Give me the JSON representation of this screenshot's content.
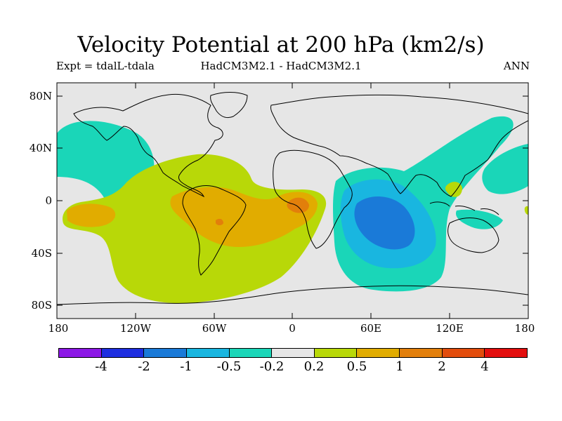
{
  "title": "Velocity Potential at 200 hPa (km2/s)",
  "expt_label": "Expt = tdalL-tdala",
  "model_label": "HadCM3M2.1 - HadCM3M2.1",
  "season_label": "ANN",
  "lat_ticks": [
    "80N",
    "40N",
    "0",
    "40S",
    "80S"
  ],
  "lon_ticks": [
    "180",
    "120W",
    "60W",
    "0",
    "60E",
    "120E",
    "180"
  ],
  "colorbar": {
    "colors": [
      "#8c17e6",
      "#1e2ee0",
      "#1a7ad8",
      "#19b6e0",
      "#1ad6b8",
      "#e6e6e6",
      "#b8d808",
      "#e1ac00",
      "#e27f0b",
      "#e24c0c",
      "#e30e0e"
    ],
    "labels": [
      "-4",
      "-2",
      "-1",
      "-0.5",
      "-0.2",
      "0.2",
      "0.5",
      "1",
      "2",
      "4"
    ]
  },
  "colors": {
    "land_outline": "#000000",
    "background": "#e6e6e6"
  }
}
